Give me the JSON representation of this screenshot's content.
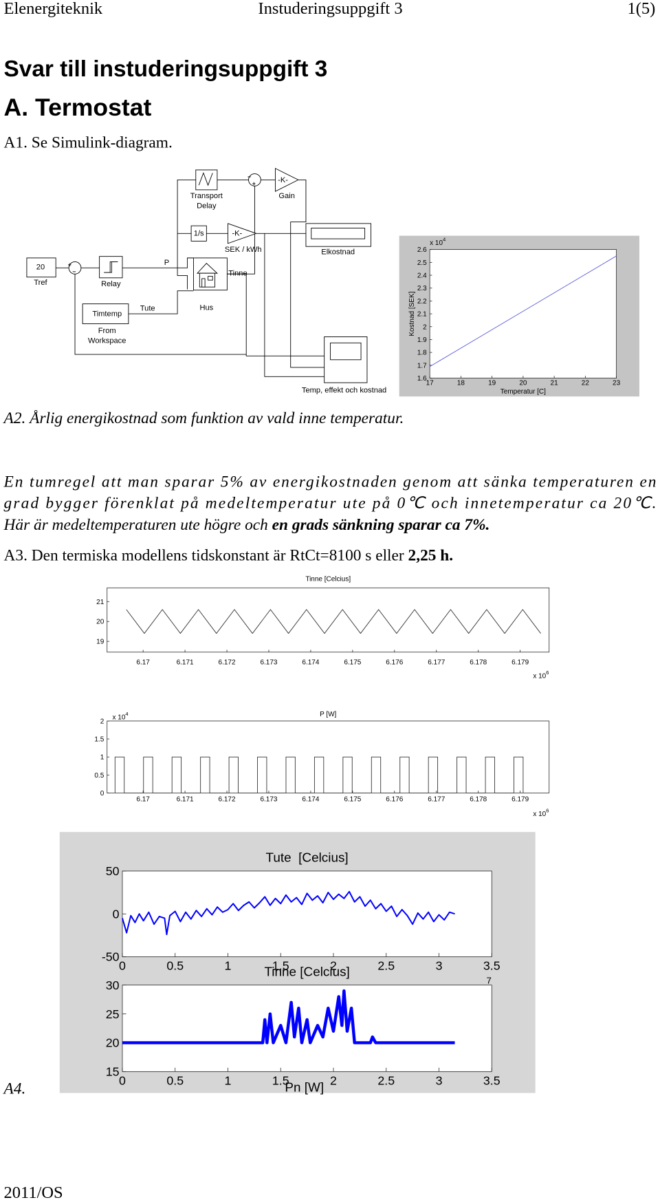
{
  "header": {
    "left": "Elenergiteknik",
    "center": "Instuderingsuppgift 3",
    "right": "1(5)"
  },
  "title": "Svar till instuderingsuppgift 3",
  "section": "A. Termostat",
  "a1": "A1. Se Simulink-diagram.",
  "diagram": {
    "transport_delay": [
      "Transport",
      "Delay"
    ],
    "gain_block": "-K-",
    "gain": "Gain",
    "integrator": "1/s",
    "price_block": "-K-",
    "price": "SEK / kWh",
    "elkostnad": "Elkostnad",
    "constant": "20",
    "tref": "Tref",
    "relay": "Relay",
    "p": "P",
    "tinne": "Tinne",
    "hus": "Hus",
    "tute": "Tute",
    "timtemp": "Timtemp",
    "from_workspace": [
      "From",
      "Workspace"
    ],
    "scope": "Temp, effekt och kostnad"
  },
  "a2": "A2. Årlig energikostnad som funktion av vald inne temperatur.",
  "paragraph": [
    "En tumregel att man sparar 5% av energikostnaden genom att sänka temperaturen en",
    "grad bygger förenklat på medeltemperatur ute på 0℃ och innetemperatur ca 20℃.",
    "Här är medeltemperaturen ute högre och "
  ],
  "paragraph_bold": "en grads sänkning sparar ca 7%.",
  "a3": "A3. Den termiska modellens tidskonstant är RtCt=8100 s eller ",
  "a3_bold": "2,25 h.",
  "a4": "A4.",
  "a4_plot_title": "Pn [W]",
  "footer": "2011/OS",
  "chart_data": [
    {
      "type": "line",
      "xlabel": "Temperatur [C]",
      "ylabel": "Kostnad [SEK]",
      "y_multiplier": {
        "base": "x 10",
        "exponent": "4"
      },
      "x": [
        17,
        23
      ],
      "values": [
        1.69,
        2.55
      ],
      "color": "#6b6bdc",
      "xlim": [
        17,
        23
      ],
      "ylim": [
        1.6,
        2.6
      ],
      "xticks": [
        17,
        18,
        19,
        20,
        21,
        22,
        23
      ],
      "yticks": [
        1.6,
        1.7,
        1.8,
        1.9,
        2,
        2.1,
        2.2,
        2.3,
        2.4,
        2.5,
        2.6
      ]
    },
    {
      "type": "line",
      "title": "Tinne [Celcius]",
      "x_multiplier": {
        "base": "x 10",
        "exponent": "6"
      },
      "x": [
        6.1696,
        6.17003,
        6.17046,
        6.17089,
        6.17132,
        6.17175,
        6.17218,
        6.17261,
        6.17304,
        6.17347,
        6.1739,
        6.17433,
        6.17476,
        6.17519,
        6.17562,
        6.17605,
        6.17648,
        6.17691,
        6.17734,
        6.17777,
        6.1782,
        6.17863,
        6.17906,
        6.17949
      ],
      "values": [
        20.6,
        19.4,
        20.6,
        19.4,
        20.6,
        19.4,
        20.6,
        19.4,
        20.6,
        19.4,
        20.6,
        19.4,
        20.6,
        19.4,
        20.6,
        19.4,
        20.6,
        19.4,
        20.6,
        19.4,
        20.6,
        19.4,
        20.6,
        19.4
      ],
      "color": "#333333",
      "xlim": [
        6.16914,
        6.17969
      ],
      "ylim": [
        18.46,
        21.69
      ],
      "xticks": [
        6.17,
        6.171,
        6.172,
        6.173,
        6.174,
        6.175,
        6.176,
        6.177,
        6.178,
        6.179
      ],
      "yticks": [
        19,
        20,
        21
      ]
    },
    {
      "type": "line",
      "title": "P [W]",
      "y_multiplier": {
        "base": "x 10",
        "exponent": "4"
      },
      "x_multiplier": {
        "base": "x 10",
        "exponent": "6"
      },
      "x": [
        6.16933,
        6.16933,
        6.16955,
        6.16955,
        6.17001,
        6.17001,
        6.17023,
        6.17023,
        6.17069,
        6.17069,
        6.17091,
        6.17091,
        6.17137,
        6.17137,
        6.17159,
        6.17159,
        6.17205,
        6.17205,
        6.17227,
        6.17227,
        6.17273,
        6.17273,
        6.17295,
        6.17295,
        6.17341,
        6.17341,
        6.17363,
        6.17363,
        6.17409,
        6.17409,
        6.17431,
        6.17431,
        6.17477,
        6.17477,
        6.17499,
        6.17499,
        6.17545,
        6.17545,
        6.17567,
        6.17567,
        6.17613,
        6.17613,
        6.17635,
        6.17635,
        6.17681,
        6.17681,
        6.17703,
        6.17703,
        6.17749,
        6.17749,
        6.17771,
        6.17771,
        6.17817,
        6.17817,
        6.17839,
        6.17839,
        6.17885,
        6.17885,
        6.17907,
        6.17907
      ],
      "values": [
        0,
        1,
        1,
        0,
        0,
        1,
        1,
        0,
        0,
        1,
        1,
        0,
        0,
        1,
        1,
        0,
        0,
        1,
        1,
        0,
        0,
        1,
        1,
        0,
        0,
        1,
        1,
        0,
        0,
        1,
        1,
        0,
        0,
        1,
        1,
        0,
        0,
        1,
        1,
        0,
        0,
        1,
        1,
        0,
        0,
        1,
        1,
        0,
        0,
        1,
        1,
        0,
        0,
        1,
        1,
        0,
        0,
        1,
        1,
        0
      ],
      "color": "#333333",
      "xlim": [
        6.16914,
        6.17969
      ],
      "ylim": [
        0,
        2
      ],
      "xticks": [
        6.17,
        6.171,
        6.172,
        6.173,
        6.174,
        6.175,
        6.176,
        6.177,
        6.178,
        6.179
      ],
      "yticks": [
        0,
        0.5,
        1,
        1.5,
        2
      ]
    },
    {
      "type": "line",
      "title": "Tute  [Celcius]",
      "x_multiplier": {
        "exponent": "7"
      },
      "x": [
        0,
        0.04,
        0.08,
        0.12,
        0.16,
        0.2,
        0.25,
        0.3,
        0.35,
        0.4,
        0.42,
        0.45,
        0.5,
        0.55,
        0.6,
        0.65,
        0.7,
        0.75,
        0.8,
        0.85,
        0.9,
        0.95,
        1.0,
        1.05,
        1.1,
        1.15,
        1.2,
        1.25,
        1.3,
        1.35,
        1.4,
        1.45,
        1.5,
        1.55,
        1.6,
        1.65,
        1.7,
        1.75,
        1.8,
        1.85,
        1.9,
        1.95,
        2.0,
        2.05,
        2.1,
        2.15,
        2.2,
        2.25,
        2.3,
        2.35,
        2.4,
        2.45,
        2.5,
        2.55,
        2.6,
        2.65,
        2.7,
        2.75,
        2.8,
        2.85,
        2.9,
        2.95,
        3.0,
        3.05,
        3.1,
        3.15
      ],
      "values": [
        -5,
        -22,
        -2,
        -10,
        0,
        -8,
        2,
        -12,
        -3,
        -5,
        -24,
        -2,
        3,
        -9,
        2,
        -6,
        4,
        -3,
        6,
        -1,
        8,
        2,
        5,
        12,
        4,
        10,
        14,
        7,
        13,
        20,
        10,
        18,
        12,
        22,
        14,
        19,
        11,
        24,
        16,
        21,
        13,
        25,
        17,
        23,
        18,
        26,
        14,
        20,
        9,
        16,
        6,
        12,
        3,
        9,
        -3,
        5,
        -2,
        -12,
        1,
        -6,
        2,
        -9,
        -1,
        -7,
        2,
        0
      ],
      "color": "#0000ff",
      "xlim": [
        0,
        3.5
      ],
      "ylim": [
        -50,
        50
      ],
      "xticks": [
        0,
        0.5,
        1,
        1.5,
        2,
        2.5,
        3,
        3.5
      ],
      "yticks": [
        -50,
        0,
        50
      ]
    },
    {
      "type": "line",
      "title": "Tinne [Celcius]",
      "x": [
        0,
        1.3,
        1.33,
        1.35,
        1.37,
        1.4,
        1.43,
        1.5,
        1.55,
        1.6,
        1.63,
        1.67,
        1.7,
        1.75,
        1.78,
        1.85,
        1.9,
        1.95,
        2.0,
        2.05,
        2.08,
        2.1,
        2.13,
        2.17,
        2.2,
        2.35,
        2.37,
        2.4,
        3.15
      ],
      "values": [
        20,
        20,
        20,
        24,
        20,
        25,
        20,
        23,
        20,
        27,
        21,
        26,
        20,
        24,
        20,
        23,
        21,
        26,
        22,
        28,
        23,
        29,
        22,
        26,
        20,
        20,
        21,
        20,
        20
      ],
      "color": "#0000ff",
      "xlim": [
        0,
        3.5
      ],
      "ylim": [
        15,
        30
      ],
      "xticks": [
        0,
        0.5,
        1,
        1.5,
        2,
        2.5,
        3,
        3.5
      ],
      "yticks": [
        15,
        20,
        25,
        30
      ]
    }
  ]
}
